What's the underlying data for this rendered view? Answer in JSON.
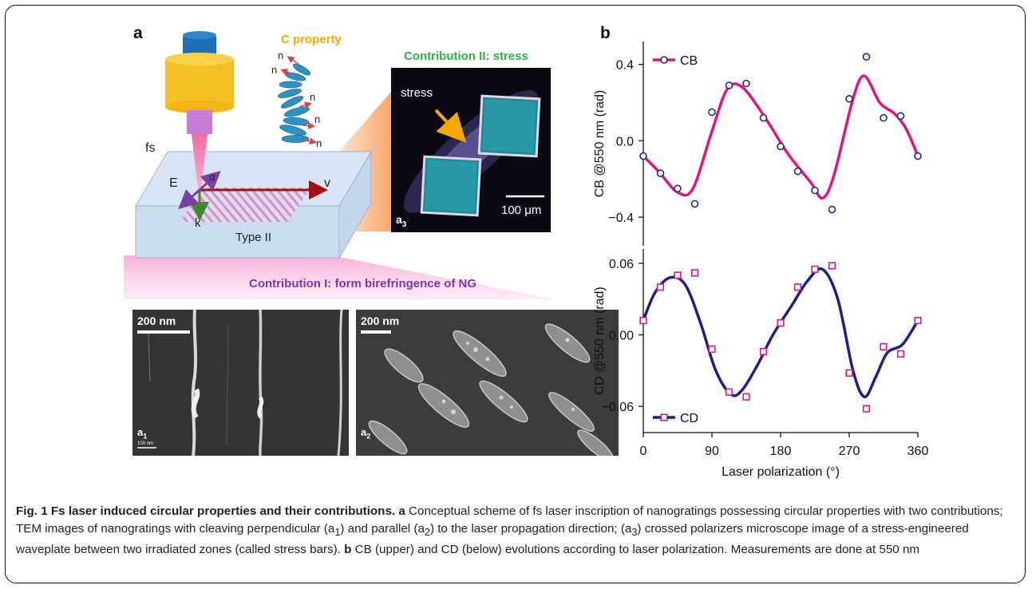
{
  "panel_a_label": "a",
  "panel_b_label": "b",
  "schematic": {
    "c_property": "C property",
    "n": "n",
    "fs": "fs",
    "E": "E",
    "alpha": "α",
    "v": "v",
    "k": "k",
    "type_ii": "Type II",
    "contribution_ii": "Contribution II: stress",
    "contribution_i": "Contribution I: form birefringence of NG",
    "stress_label": "stress",
    "stress_scale": "100 μm",
    "a3_label": "a",
    "a3_sub": "3",
    "colors": {
      "c_property": "#F5A800",
      "contribution_ii": "#2BB24C",
      "contribution_i": "#7B35B5",
      "v_arrow": "#A50F12",
      "k_arrow": "#3E8B2B",
      "e_arrow": "#7B3FA0",
      "beam": "#F06BA8"
    }
  },
  "tem": {
    "a1_scale": "200 nm",
    "a2_scale": "200 nm",
    "a1_label": "a",
    "a1_sub": "1",
    "a2_label": "a",
    "a2_sub": "2",
    "a1_small_scale": "100 nm"
  },
  "chart_data": [
    {
      "type": "scatter",
      "name_hint": "upper",
      "ylabel": "CB @550 nm (rad)",
      "legend": "CB",
      "legend_position": "top-left",
      "ylim": [
        -0.55,
        0.52
      ],
      "yticks": [
        "0.4",
        "0.0",
        "−0.4"
      ],
      "ytick_values": [
        0.4,
        0.0,
        -0.4
      ],
      "color_line": "#E0157F",
      "color_marker": "#1A2A8C",
      "x": [
        0,
        22.5,
        45,
        67.5,
        90,
        112.5,
        135,
        157.5,
        180,
        202.5,
        225,
        247.5,
        270,
        292.5,
        315,
        337.5,
        360
      ],
      "values": [
        -0.08,
        -0.17,
        -0.25,
        -0.33,
        0.15,
        0.29,
        0.3,
        0.12,
        -0.03,
        -0.16,
        -0.26,
        -0.36,
        0.22,
        0.44,
        0.12,
        0.13,
        -0.08
      ],
      "fit_x": [
        0,
        20,
        45,
        65,
        90,
        110,
        130,
        160,
        190,
        220,
        235,
        250,
        275,
        290,
        310,
        330,
        345,
        360
      ],
      "fit_y": [
        -0.08,
        -0.16,
        -0.27,
        -0.25,
        0.05,
        0.27,
        0.28,
        0.12,
        -0.07,
        -0.22,
        -0.3,
        -0.18,
        0.22,
        0.34,
        0.2,
        0.14,
        0.06,
        -0.08
      ]
    },
    {
      "type": "scatter",
      "name_hint": "lower",
      "ylabel": "CD @550 nm (rad)",
      "legend": "CD",
      "legend_position": "bottom-left",
      "xlabel": "Laser polarization (°)",
      "xticks": [
        "0",
        "90",
        "180",
        "270",
        "360"
      ],
      "xtick_values": [
        0,
        90,
        180,
        270,
        360
      ],
      "ylim": [
        -0.082,
        0.072
      ],
      "yticks": [
        "0.06",
        "0.00",
        "−0.06"
      ],
      "ytick_values": [
        0.06,
        0.0,
        -0.06
      ],
      "color_line": "#1A1F8C",
      "color_marker": "#E0157F",
      "x": [
        0,
        22.5,
        45,
        67.5,
        90,
        112.5,
        135,
        157.5,
        180,
        202.5,
        225,
        247.5,
        270,
        292.5,
        315,
        337.5,
        360
      ],
      "values": [
        0.012,
        0.04,
        0.05,
        0.052,
        -0.012,
        -0.048,
        -0.052,
        -0.014,
        0.01,
        0.04,
        0.055,
        0.058,
        -0.032,
        -0.062,
        -0.01,
        -0.016,
        0.012
      ],
      "fit_x": [
        0,
        15,
        35,
        55,
        75,
        95,
        115,
        130,
        150,
        170,
        195,
        215,
        235,
        255,
        275,
        290,
        305,
        320,
        340,
        360
      ],
      "fit_y": [
        0.012,
        0.035,
        0.048,
        0.042,
        0.01,
        -0.03,
        -0.05,
        -0.046,
        -0.025,
        0.0,
        0.025,
        0.045,
        0.055,
        0.03,
        -0.03,
        -0.052,
        -0.035,
        -0.015,
        -0.008,
        0.012
      ]
    }
  ],
  "caption": {
    "fig_label": "Fig. 1 Fs laser induced circular properties and their contributions.",
    "seg_a": "a",
    "text_a": " Conceptual scheme of fs laser inscription of nanogratings possessing circular properties with two contributions; TEM images of nanogratings with cleaving perpendicular (a",
    "sub1": "1",
    "text_a2": ") and parallel (a",
    "sub2": "2",
    "text_a3": ") to the laser propagation direction; (a",
    "sub3": "3",
    "text_a4": ") crossed polarizers microscope image of a stress-engineered waveplate between two irradiated zones (called stress bars).",
    "seg_b": "b",
    "text_b": " CB (upper) and CD (below) evolutions according to laser polarization. Measurements are done at 550 nm"
  }
}
